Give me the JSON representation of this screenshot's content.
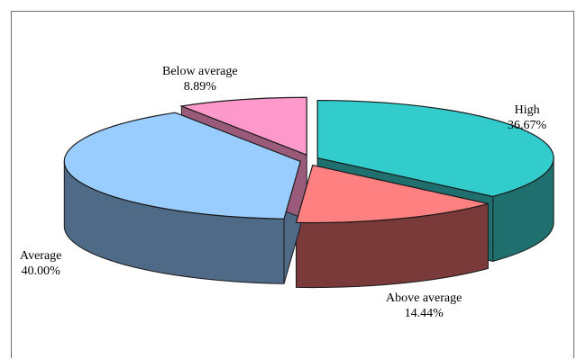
{
  "chart_data": {
    "type": "pie",
    "style": "3d-exploded",
    "categories": [
      "High",
      "Above average",
      "Average",
      "Below average"
    ],
    "values": [
      36.67,
      14.44,
      40.0,
      8.89
    ],
    "value_labels": [
      "36.67%",
      "14.44%",
      "40.00%",
      "8.89%"
    ],
    "colors": {
      "top": [
        "#33CCCC",
        "#FF8080",
        "#99CCFF",
        "#FF99CC"
      ],
      "side": [
        "#1F6F6F",
        "#7A3A3A",
        "#4F6A86",
        "#9A5A7A"
      ]
    },
    "title": "",
    "legend": "none"
  }
}
